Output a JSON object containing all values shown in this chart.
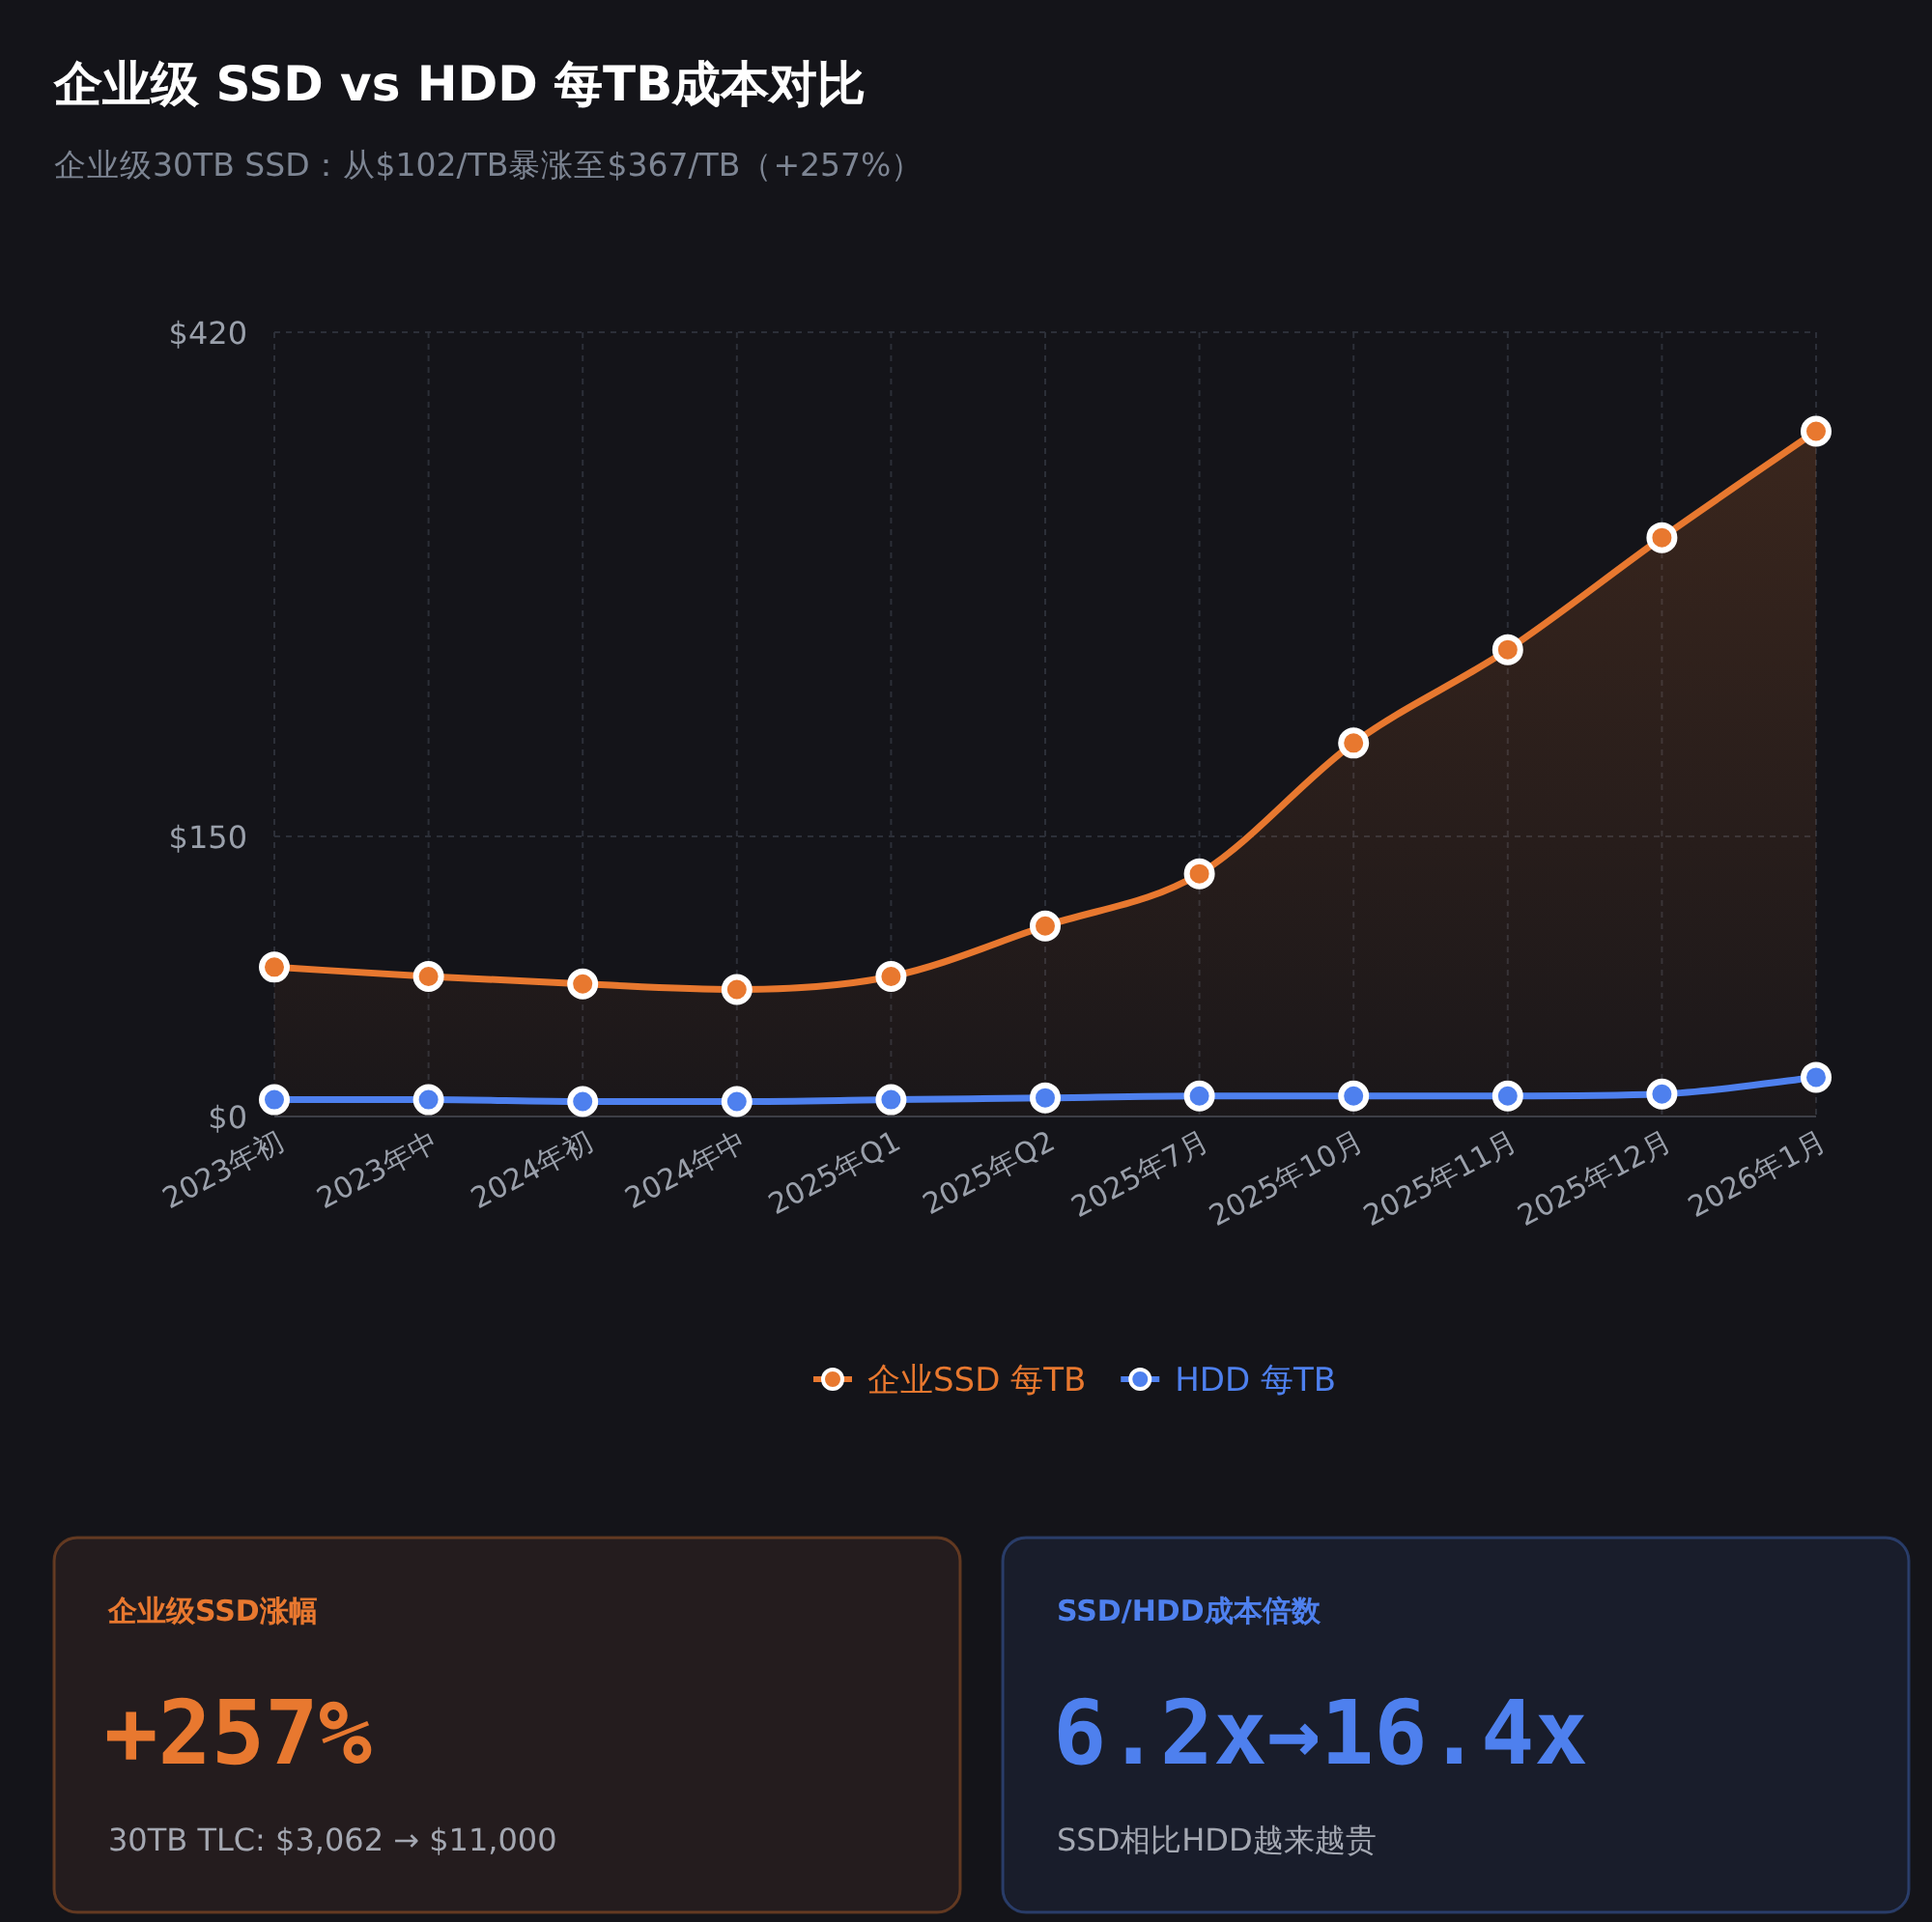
{
  "chart_data": [
    {
      "type": "line",
      "title": "企业级 SSD vs HDD 每TB成本对比",
      "subtitle": "企业级30TB SSD：从$102/TB暴涨至$367/TB（+257%）",
      "categories": [
        "2023年初",
        "2023年中",
        "2024年初",
        "2024年中",
        "2025年Q1",
        "2025年Q2",
        "2025年7月",
        "2025年10月",
        "2025年11月",
        "2025年12月",
        "2026年1月"
      ],
      "series": [
        {
          "name": "企业SSD 每TB",
          "type": "area",
          "color": "#e8782f",
          "values": [
            80,
            75,
            71,
            68,
            75,
            102,
            130,
            200,
            250,
            310,
            367
          ]
        },
        {
          "name": "HDD 每TB",
          "type": "line",
          "color": "#4e80ee",
          "values": [
            9,
            9,
            8,
            8,
            9,
            10,
            11,
            11,
            11,
            12,
            21
          ]
        }
      ],
      "ylim": [
        0,
        420
      ],
      "yticks": [
        {
          "value": 0,
          "label": "$0"
        },
        {
          "value": 150,
          "label": "$150"
        },
        {
          "value": 420,
          "label": "$420"
        }
      ],
      "grid": true,
      "legend": "bottom",
      "marker": "circle",
      "line_style": "solid"
    },
    {
      "type": "other",
      "title": "企业级SSD涨幅",
      "color": "#e8782f",
      "annotations": [
        "+257%",
        "30TB TLC: $3,062 → $11,000"
      ]
    },
    {
      "type": "other",
      "title": "SSD/HDD成本倍数",
      "color": "#4e80ee",
      "annotations": [
        "6.2x→16.4x",
        "SSD相比HDD越来越贵"
      ]
    }
  ]
}
